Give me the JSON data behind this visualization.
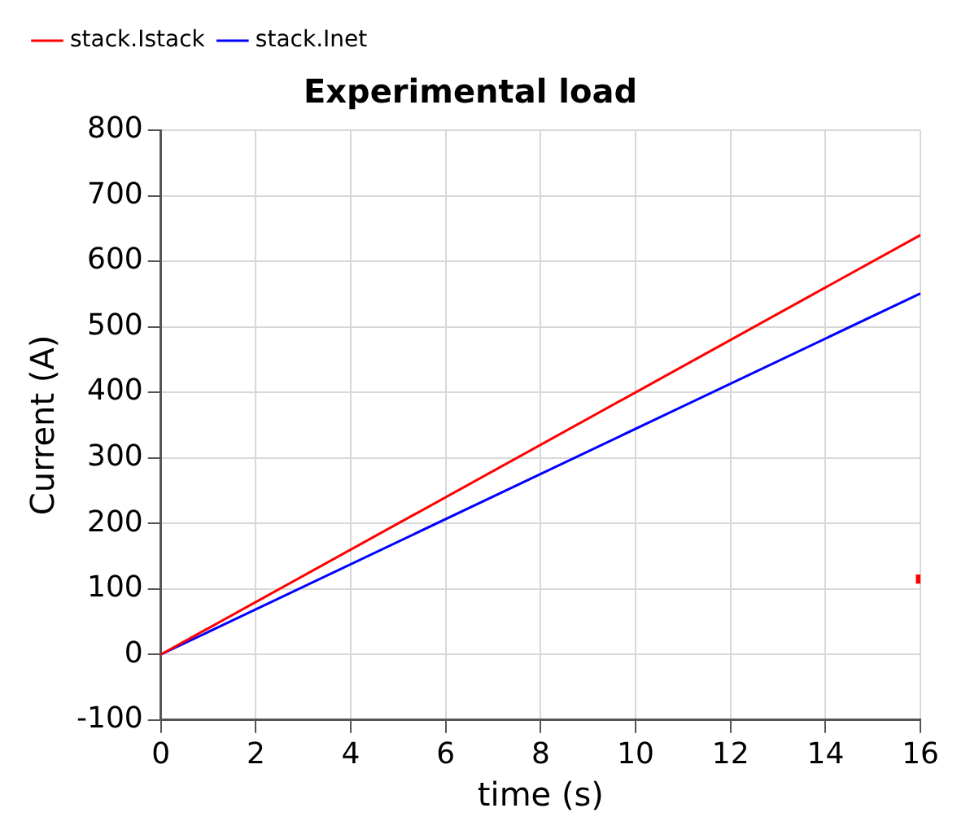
{
  "chart_data": {
    "type": "line",
    "title": "Experimental load",
    "xlabel": "time (s)",
    "ylabel": "Current (A)",
    "xlim": [
      0,
      16
    ],
    "xticks": [
      0,
      2,
      4,
      6,
      8,
      10,
      12,
      14,
      16
    ],
    "ylim": [
      -100,
      800
    ],
    "yticks": [
      -100,
      0,
      100,
      200,
      300,
      400,
      500,
      600,
      700,
      800
    ],
    "x": [
      0,
      16
    ],
    "grid": true,
    "legend": "top left",
    "marker": "none",
    "line_style": "solid",
    "series": [
      {
        "name": "stack.Istack",
        "color": "#ff0000",
        "values": [
          0,
          640
        ]
      },
      {
        "name": "stack.Inet",
        "color": "#0000ff",
        "values": [
          0,
          551
        ]
      },
      {
        "type": "scatter",
        "marker": "square",
        "color": "#ff0000",
        "x": [
          16
        ],
        "values": [
          115
        ]
      }
    ]
  }
}
